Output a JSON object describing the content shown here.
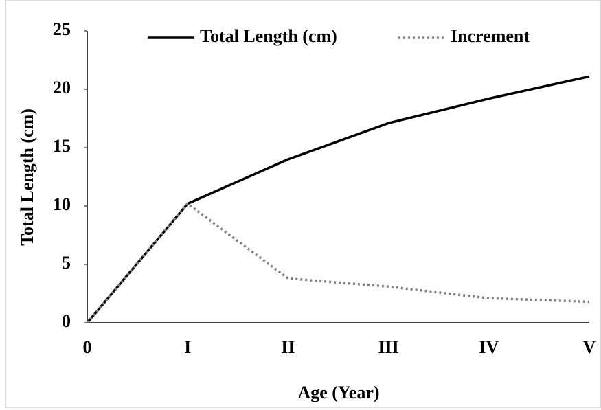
{
  "chart_data": {
    "type": "line",
    "categories": [
      "0",
      "I",
      "II",
      "III",
      "IV",
      "V"
    ],
    "series": [
      {
        "name": "Total Length (cm)",
        "color": "#000000",
        "style": "solid",
        "values": [
          0,
          10.2,
          14,
          17.1,
          19.2,
          21.1
        ]
      },
      {
        "name": "Increment",
        "color": "#7f7f7f",
        "style": "dotted",
        "values": [
          0,
          10.2,
          3.8,
          3.1,
          2.1,
          1.8
        ]
      }
    ],
    "xlabel": "Age (Year)",
    "ylabel": "Total Length (cm)",
    "ylim": [
      0,
      25
    ],
    "yticks": [
      0,
      5,
      10,
      15,
      20,
      25
    ],
    "grid": false,
    "legend": "top"
  }
}
